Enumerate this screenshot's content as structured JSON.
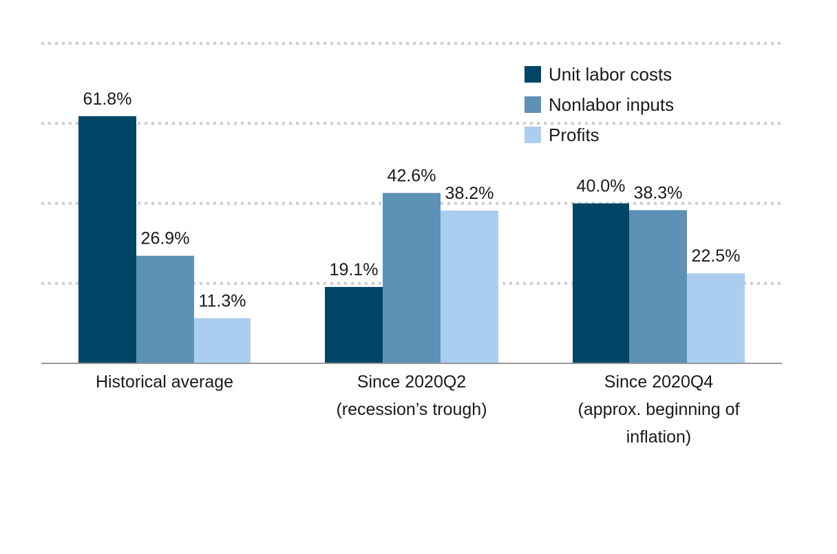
{
  "chart_data": {
    "type": "bar",
    "categories": [
      [
        "Historical average"
      ],
      [
        "Since 2020Q2",
        "(recession’s trough)"
      ],
      [
        "Since 2020Q4",
        "(approx. beginning of",
        "inflation)"
      ]
    ],
    "series": [
      {
        "name": "Unit labor costs",
        "values": [
          61.8,
          19.1,
          40.0
        ],
        "labels": [
          "61.8%",
          "19.1%",
          "40.0%"
        ],
        "color": "#004466"
      },
      {
        "name": "Nonlabor inputs",
        "values": [
          26.9,
          42.6,
          38.3
        ],
        "labels": [
          "26.9%",
          "42.6%",
          "38.3%"
        ],
        "color": "#5d91b6"
      },
      {
        "name": "Profits",
        "values": [
          11.3,
          38.2,
          22.5
        ],
        "labels": [
          "11.3%",
          "38.2%",
          "22.5%"
        ],
        "color": "#abcdef"
      }
    ],
    "ylim": [
      0,
      80
    ],
    "grid": true,
    "legend_position": "top-right"
  }
}
